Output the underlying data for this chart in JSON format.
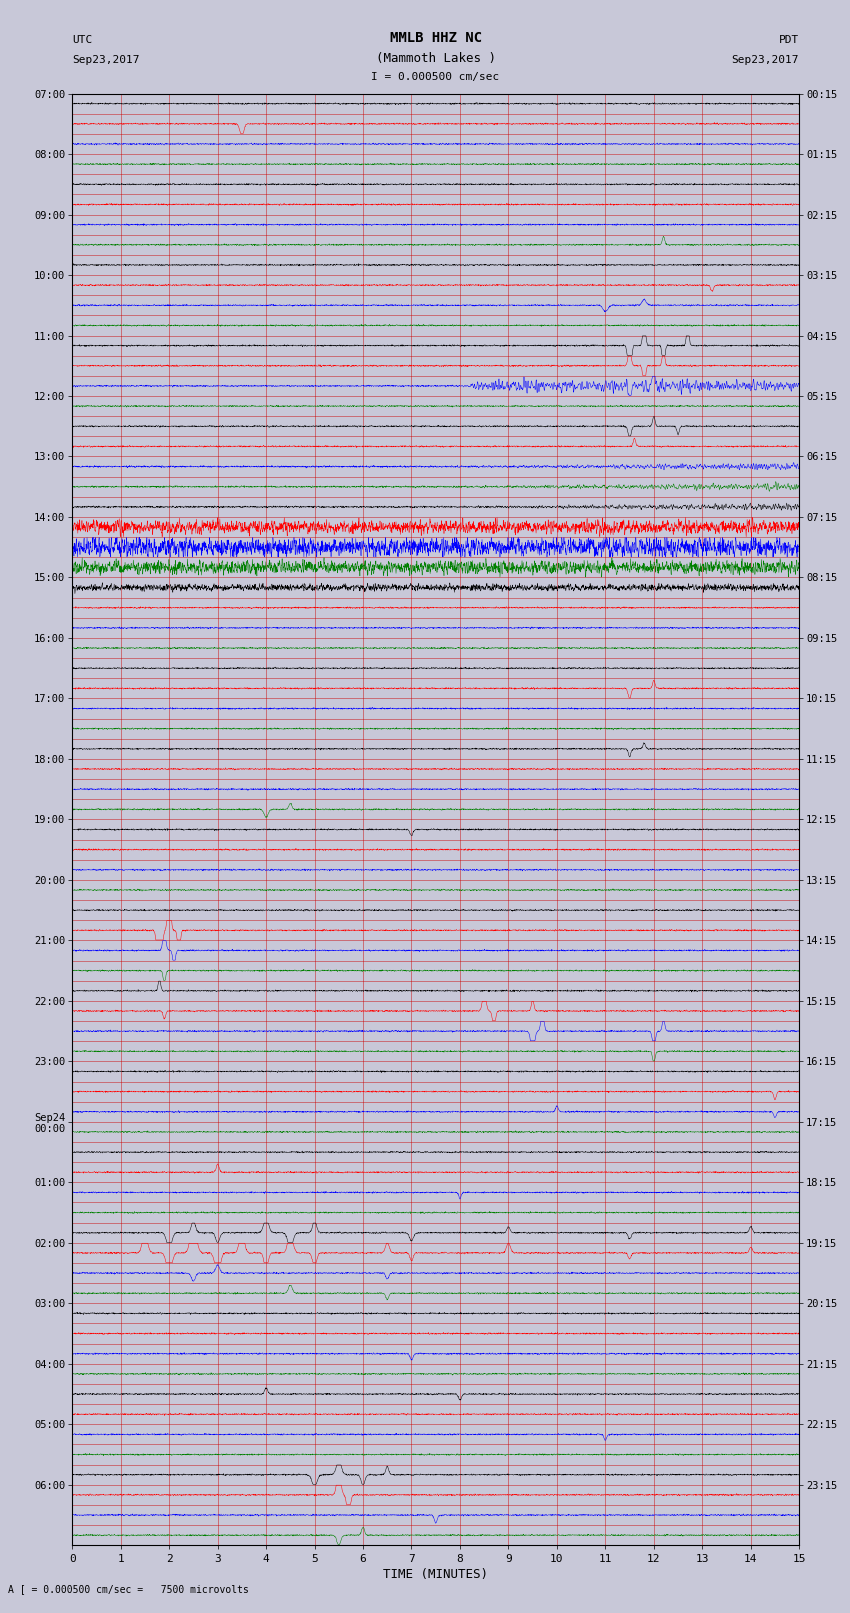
{
  "title_line1": "MMLB HHZ NC",
  "title_line2": "(Mammoth Lakes )",
  "title_scale": "I = 0.000500 cm/sec",
  "left_label1": "UTC",
  "left_label2": "Sep23,2017",
  "right_label1": "PDT",
  "right_label2": "Sep23,2017",
  "xlabel": "TIME (MINUTES)",
  "footer": "A [ = 0.000500 cm/sec =   7500 microvolts",
  "utc_labels_every3": [
    "07:00",
    "08:00",
    "09:00",
    "10:00",
    "11:00",
    "12:00",
    "13:00",
    "14:00",
    "15:00",
    "16:00",
    "17:00",
    "18:00",
    "19:00",
    "20:00",
    "21:00",
    "22:00",
    "23:00",
    "Sep24\n00:00",
    "01:00",
    "02:00",
    "03:00",
    "04:00",
    "05:00",
    "06:00"
  ],
  "pdt_labels_every3": [
    "00:15",
    "01:15",
    "02:15",
    "03:15",
    "04:15",
    "05:15",
    "06:15",
    "07:15",
    "08:15",
    "09:15",
    "10:15",
    "11:15",
    "12:15",
    "13:15",
    "14:15",
    "15:15",
    "16:15",
    "17:15",
    "18:15",
    "19:15",
    "20:15",
    "21:15",
    "22:15",
    "23:15"
  ],
  "num_rows": 72,
  "xmin": 0,
  "xmax": 15,
  "colors_cycle": [
    "black",
    "red",
    "blue",
    "green"
  ],
  "bg_color": "#c8c8d8",
  "plot_bg": "#c8c8d8",
  "grid_color": "#cc0000",
  "base_noise": 0.025
}
